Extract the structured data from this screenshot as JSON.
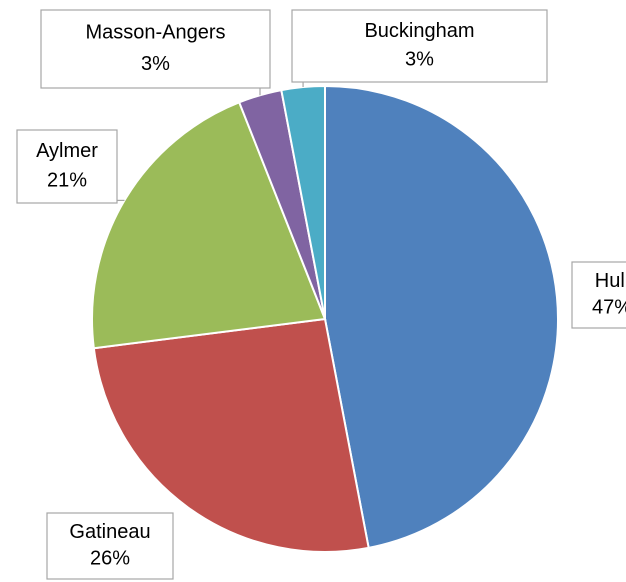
{
  "chart_data": {
    "type": "pie",
    "categories": [
      "Hull",
      "Gatineau",
      "Aylmer",
      "Masson-Angers",
      "Buckingham"
    ],
    "values": [
      47,
      26,
      21,
      3,
      3
    ],
    "value_labels": [
      "47%",
      "26%",
      "21%",
      "3%",
      "3%"
    ],
    "colors": [
      "#4f81bd",
      "#c0504d",
      "#9bbb59",
      "#8064a2",
      "#4bacc6"
    ]
  }
}
